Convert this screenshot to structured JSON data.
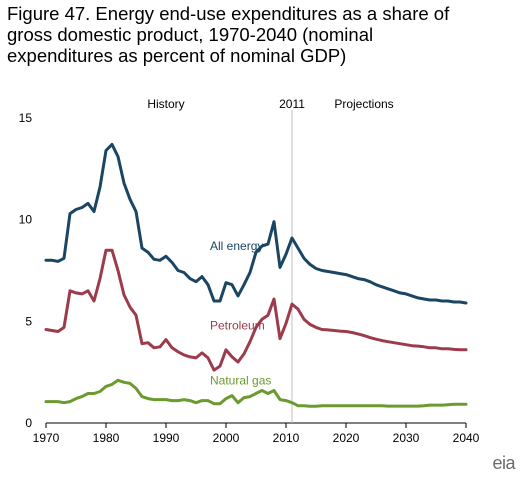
{
  "figure": {
    "title_lines": [
      "Figure 47. Energy end-use expenditures as a share of",
      "gross domestic product, 1970-2040 (nominal",
      "expenditures as percent of nominal GDP)"
    ]
  },
  "logo": {
    "text": "eia"
  },
  "colors": {
    "all_energy": "#1a4563",
    "petroleum": "#9b3b4b",
    "natural_gas": "#6b9a2f",
    "axis": "#000000",
    "divider": "#bfbfbf"
  },
  "chart_data": {
    "type": "line",
    "title": "",
    "xlabel": "",
    "ylabel": "",
    "xlim": [
      1970,
      2040
    ],
    "ylim": [
      0,
      15
    ],
    "x_ticks": [
      1970,
      1980,
      1990,
      2000,
      2010,
      2020,
      2030,
      2040
    ],
    "y_ticks": [
      0,
      5,
      10,
      15
    ],
    "grid": false,
    "divider": {
      "x": 2011,
      "label": "2011"
    },
    "annotations": [
      {
        "text": "History",
        "x": 1990,
        "y": 15.2
      },
      {
        "text": "Projections",
        "x": 2023,
        "y": 15.2
      }
    ],
    "series": [
      {
        "name": "All energy",
        "color_key": "all_energy",
        "label_at": {
          "x": 1994,
          "y": 8.5
        },
        "points": [
          [
            1970,
            8.0
          ],
          [
            1971,
            8.0
          ],
          [
            1972,
            7.95
          ],
          [
            1973,
            8.1
          ],
          [
            1974,
            10.3
          ],
          [
            1975,
            10.5
          ],
          [
            1976,
            10.6
          ],
          [
            1977,
            10.8
          ],
          [
            1978,
            10.4
          ],
          [
            1979,
            11.6
          ],
          [
            1980,
            13.4
          ],
          [
            1981,
            13.7
          ],
          [
            1982,
            13.1
          ],
          [
            1983,
            11.8
          ],
          [
            1984,
            11.0
          ],
          [
            1985,
            10.4
          ],
          [
            1986,
            8.6
          ],
          [
            1987,
            8.4
          ],
          [
            1988,
            8.05
          ],
          [
            1989,
            8.0
          ],
          [
            1990,
            8.2
          ],
          [
            1991,
            7.9
          ],
          [
            1992,
            7.5
          ],
          [
            1993,
            7.4
          ],
          [
            1994,
            7.1
          ],
          [
            1995,
            6.95
          ],
          [
            1996,
            7.2
          ],
          [
            1997,
            6.8
          ],
          [
            1998,
            6.0
          ],
          [
            1999,
            6.0
          ],
          [
            2000,
            6.9
          ],
          [
            2001,
            6.8
          ],
          [
            2002,
            6.25
          ],
          [
            2003,
            6.8
          ],
          [
            2004,
            7.4
          ],
          [
            2005,
            8.4
          ],
          [
            2006,
            8.7
          ],
          [
            2007,
            8.8
          ],
          [
            2008,
            9.9
          ],
          [
            2009,
            7.65
          ],
          [
            2010,
            8.3
          ],
          [
            2011,
            9.1
          ],
          [
            2012,
            8.6
          ],
          [
            2013,
            8.1
          ],
          [
            2014,
            7.8
          ],
          [
            2015,
            7.6
          ],
          [
            2016,
            7.5
          ],
          [
            2017,
            7.45
          ],
          [
            2018,
            7.4
          ],
          [
            2019,
            7.35
          ],
          [
            2020,
            7.3
          ],
          [
            2021,
            7.2
          ],
          [
            2022,
            7.1
          ],
          [
            2023,
            7.05
          ],
          [
            2024,
            6.95
          ],
          [
            2025,
            6.8
          ],
          [
            2026,
            6.7
          ],
          [
            2027,
            6.6
          ],
          [
            2028,
            6.5
          ],
          [
            2029,
            6.4
          ],
          [
            2030,
            6.35
          ],
          [
            2031,
            6.25
          ],
          [
            2032,
            6.15
          ],
          [
            2033,
            6.1
          ],
          [
            2034,
            6.05
          ],
          [
            2035,
            6.05
          ],
          [
            2036,
            6.0
          ],
          [
            2037,
            6.0
          ],
          [
            2038,
            5.95
          ],
          [
            2039,
            5.95
          ],
          [
            2040,
            5.9
          ]
        ]
      },
      {
        "name": "Petroleum",
        "color_key": "petroleum",
        "label_at": {
          "x": 1994,
          "y": 4.6
        },
        "points": [
          [
            1970,
            4.6
          ],
          [
            1971,
            4.55
          ],
          [
            1972,
            4.5
          ],
          [
            1973,
            4.7
          ],
          [
            1974,
            6.5
          ],
          [
            1975,
            6.4
          ],
          [
            1976,
            6.35
          ],
          [
            1977,
            6.5
          ],
          [
            1978,
            6.0
          ],
          [
            1979,
            7.1
          ],
          [
            1980,
            8.5
          ],
          [
            1981,
            8.5
          ],
          [
            1982,
            7.5
          ],
          [
            1983,
            6.3
          ],
          [
            1984,
            5.7
          ],
          [
            1985,
            5.3
          ],
          [
            1986,
            3.9
          ],
          [
            1987,
            3.95
          ],
          [
            1988,
            3.7
          ],
          [
            1989,
            3.75
          ],
          [
            1990,
            4.1
          ],
          [
            1991,
            3.7
          ],
          [
            1992,
            3.5
          ],
          [
            1993,
            3.35
          ],
          [
            1994,
            3.25
          ],
          [
            1995,
            3.2
          ],
          [
            1996,
            3.45
          ],
          [
            1997,
            3.2
          ],
          [
            1998,
            2.6
          ],
          [
            1999,
            2.8
          ],
          [
            2000,
            3.6
          ],
          [
            2001,
            3.25
          ],
          [
            2002,
            3.0
          ],
          [
            2003,
            3.4
          ],
          [
            2004,
            4.0
          ],
          [
            2005,
            4.7
          ],
          [
            2006,
            5.1
          ],
          [
            2007,
            5.3
          ],
          [
            2008,
            6.1
          ],
          [
            2009,
            4.15
          ],
          [
            2010,
            4.9
          ],
          [
            2011,
            5.85
          ],
          [
            2012,
            5.6
          ],
          [
            2013,
            5.1
          ],
          [
            2014,
            4.85
          ],
          [
            2015,
            4.7
          ],
          [
            2016,
            4.6
          ],
          [
            2017,
            4.58
          ],
          [
            2018,
            4.55
          ],
          [
            2019,
            4.52
          ],
          [
            2020,
            4.5
          ],
          [
            2021,
            4.45
          ],
          [
            2022,
            4.38
          ],
          [
            2023,
            4.3
          ],
          [
            2024,
            4.2
          ],
          [
            2025,
            4.12
          ],
          [
            2026,
            4.05
          ],
          [
            2027,
            4.0
          ],
          [
            2028,
            3.95
          ],
          [
            2029,
            3.9
          ],
          [
            2030,
            3.85
          ],
          [
            2031,
            3.8
          ],
          [
            2032,
            3.78
          ],
          [
            2033,
            3.75
          ],
          [
            2034,
            3.7
          ],
          [
            2035,
            3.7
          ],
          [
            2036,
            3.65
          ],
          [
            2037,
            3.65
          ],
          [
            2038,
            3.62
          ],
          [
            2039,
            3.6
          ],
          [
            2040,
            3.6
          ]
        ]
      },
      {
        "name": "Natural gas",
        "color_key": "natural_gas",
        "label_at": {
          "x": 1994,
          "y": 1.9
        },
        "points": [
          [
            1970,
            1.05
          ],
          [
            1971,
            1.05
          ],
          [
            1972,
            1.05
          ],
          [
            1973,
            1.0
          ],
          [
            1974,
            1.05
          ],
          [
            1975,
            1.2
          ],
          [
            1976,
            1.3
          ],
          [
            1977,
            1.45
          ],
          [
            1978,
            1.45
          ],
          [
            1979,
            1.55
          ],
          [
            1980,
            1.8
          ],
          [
            1981,
            1.9
          ],
          [
            1982,
            2.1
          ],
          [
            1983,
            2.0
          ],
          [
            1984,
            1.95
          ],
          [
            1985,
            1.7
          ],
          [
            1986,
            1.3
          ],
          [
            1987,
            1.2
          ],
          [
            1988,
            1.15
          ],
          [
            1989,
            1.15
          ],
          [
            1990,
            1.15
          ],
          [
            1991,
            1.1
          ],
          [
            1992,
            1.1
          ],
          [
            1993,
            1.15
          ],
          [
            1994,
            1.1
          ],
          [
            1995,
            1.0
          ],
          [
            1996,
            1.1
          ],
          [
            1997,
            1.1
          ],
          [
            1998,
            0.95
          ],
          [
            1999,
            0.95
          ],
          [
            2000,
            1.2
          ],
          [
            2001,
            1.35
          ],
          [
            2002,
            1.0
          ],
          [
            2003,
            1.25
          ],
          [
            2004,
            1.3
          ],
          [
            2005,
            1.45
          ],
          [
            2006,
            1.6
          ],
          [
            2007,
            1.45
          ],
          [
            2008,
            1.6
          ],
          [
            2009,
            1.15
          ],
          [
            2010,
            1.1
          ],
          [
            2011,
            1.0
          ],
          [
            2012,
            0.85
          ],
          [
            2013,
            0.85
          ],
          [
            2014,
            0.82
          ],
          [
            2015,
            0.82
          ],
          [
            2016,
            0.85
          ],
          [
            2017,
            0.85
          ],
          [
            2018,
            0.85
          ],
          [
            2019,
            0.85
          ],
          [
            2020,
            0.85
          ],
          [
            2021,
            0.85
          ],
          [
            2022,
            0.85
          ],
          [
            2023,
            0.85
          ],
          [
            2024,
            0.85
          ],
          [
            2025,
            0.85
          ],
          [
            2026,
            0.85
          ],
          [
            2027,
            0.83
          ],
          [
            2028,
            0.83
          ],
          [
            2029,
            0.83
          ],
          [
            2030,
            0.83
          ],
          [
            2031,
            0.83
          ],
          [
            2032,
            0.83
          ],
          [
            2033,
            0.85
          ],
          [
            2034,
            0.88
          ],
          [
            2035,
            0.88
          ],
          [
            2036,
            0.88
          ],
          [
            2037,
            0.9
          ],
          [
            2038,
            0.92
          ],
          [
            2039,
            0.92
          ],
          [
            2040,
            0.92
          ]
        ]
      }
    ]
  }
}
